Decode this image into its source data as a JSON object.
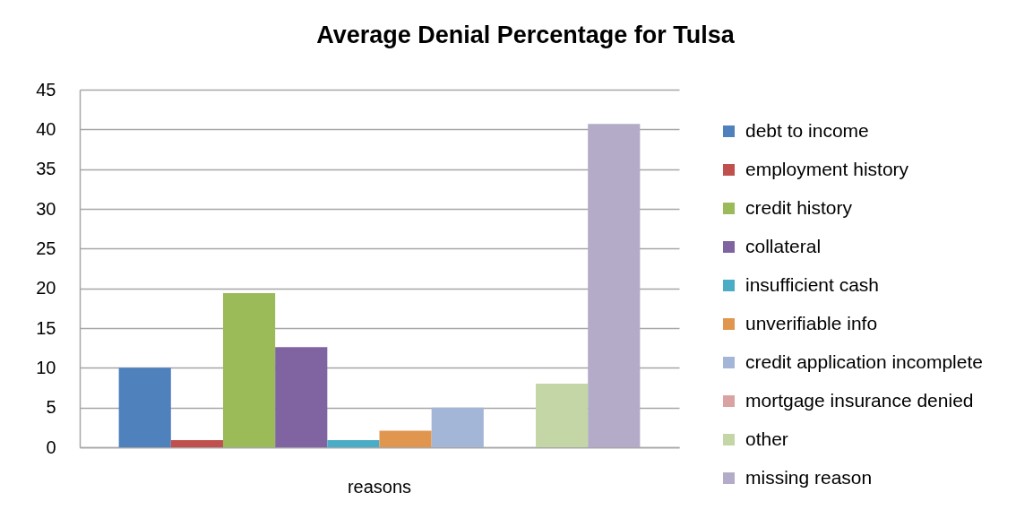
{
  "chart_data": {
    "type": "bar",
    "title": "Average Denial Percentage for Tulsa",
    "categories": [
      "reasons"
    ],
    "series": [
      {
        "name": "debt to income",
        "color": "#4f81bd",
        "values": [
          10
        ]
      },
      {
        "name": "employment history",
        "color": "#c0504d",
        "values": [
          0.9
        ]
      },
      {
        "name": "credit history",
        "color": "#9bbb59",
        "values": [
          19.4
        ]
      },
      {
        "name": "collateral",
        "color": "#8064a2",
        "values": [
          12.6
        ]
      },
      {
        "name": "insufficient cash",
        "color": "#4bacc6",
        "values": [
          0.9
        ]
      },
      {
        "name": "unverifiable info",
        "color": "#e0964e",
        "values": [
          2.1
        ]
      },
      {
        "name": "credit application incomplete",
        "color": "#a3b6d7",
        "values": [
          5
        ]
      },
      {
        "name": "mortgage insurance denied",
        "color": "#d9a3a2",
        "values": [
          0
        ]
      },
      {
        "name": "other",
        "color": "#c5d6a6",
        "values": [
          8
        ]
      },
      {
        "name": "missing reason",
        "color": "#b3abc7",
        "values": [
          40.7
        ]
      }
    ],
    "ylim": [
      0,
      45
    ],
    "yticks": [
      0,
      5,
      10,
      15,
      20,
      25,
      30,
      35,
      40,
      45
    ],
    "grid": "y",
    "legend": "right"
  }
}
